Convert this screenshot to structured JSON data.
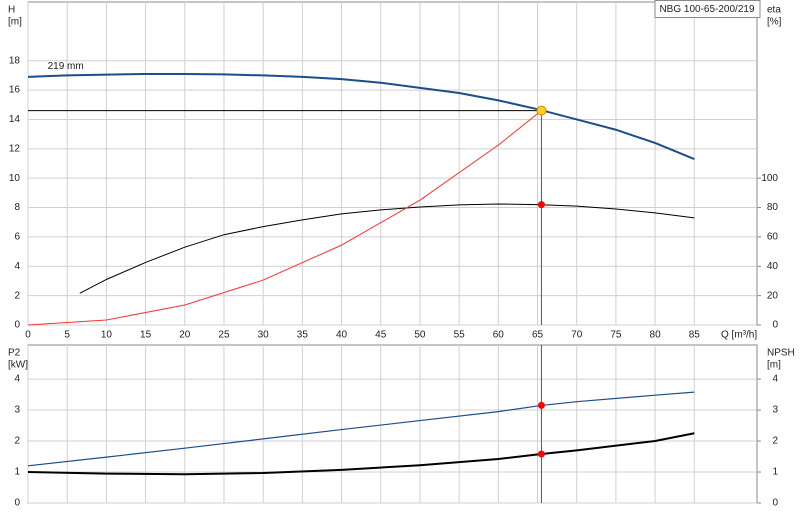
{
  "chart_data": [
    {
      "type": "line",
      "title": "NBG 100-65-200/219",
      "y_label": "H",
      "y_unit": "[m]",
      "y2_label": "eta",
      "y2_unit": "[%]",
      "x_label": "Q [m³/h]",
      "annotation": "219 mm",
      "annotation_x": 2.5,
      "annotation_y": 17.6,
      "xlim": [
        0,
        93
      ],
      "xticks": [
        0,
        5,
        10,
        15,
        20,
        25,
        30,
        35,
        40,
        45,
        50,
        55,
        60,
        65,
        70,
        75,
        80,
        85
      ],
      "xtick_labels": true,
      "ylim": [
        0,
        22
      ],
      "yticks": [
        0,
        2,
        4,
        6,
        8,
        10,
        12,
        14,
        16,
        18
      ],
      "y2lim": [
        0,
        220
      ],
      "y2ticks": [
        0,
        20,
        40,
        60,
        80,
        100
      ],
      "grid": true,
      "series": [
        {
          "color": "#1a4f8b",
          "width": 2,
          "axis": "y",
          "x": [
            0,
            5,
            10,
            15,
            20,
            25,
            30,
            35,
            40,
            45,
            50,
            55,
            60,
            65,
            70,
            75,
            80,
            85
          ],
          "values": [
            16.9,
            17.0,
            17.05,
            17.1,
            17.1,
            17.07,
            17.0,
            16.9,
            16.75,
            16.5,
            16.15,
            15.8,
            15.3,
            14.7,
            14.0,
            13.3,
            12.4,
            11.3
          ]
        },
        {
          "color": "#000000",
          "width": 1,
          "axis": "y2",
          "x": [
            6.6,
            10,
            15,
            20,
            25,
            30,
            35,
            40,
            45,
            50,
            55,
            60,
            65,
            70,
            75,
            80,
            85
          ],
          "values": [
            21.6,
            31,
            42.6,
            53,
            61.5,
            67,
            71.6,
            75.7,
            78.4,
            80.4,
            81.8,
            82.4,
            82,
            81,
            79,
            76.4,
            73
          ]
        },
        {
          "color": "#ff3030",
          "width": 1,
          "axis": "y",
          "x": [
            0,
            10,
            20,
            30,
            40,
            50,
            60,
            65.5
          ],
          "values": [
            0,
            0.34,
            1.36,
            3.06,
            5.44,
            8.5,
            12.25,
            14.6
          ]
        }
      ],
      "markers": [
        {
          "x": 65.5,
          "value": 14.6,
          "axis": "y",
          "color": "#ffd21f",
          "guide": true
        },
        {
          "x": 65.5,
          "value": 82,
          "axis": "y2",
          "color": "#ff0000",
          "guide": false
        }
      ]
    },
    {
      "type": "line",
      "y_label": "P2",
      "y_unit": "[kW]",
      "y2_label": "NPSH",
      "y2_unit": "[m]",
      "xlim": [
        0,
        93
      ],
      "xticks": [
        0,
        5,
        10,
        15,
        20,
        25,
        30,
        35,
        40,
        45,
        50,
        55,
        60,
        65,
        70,
        75,
        80,
        85
      ],
      "xtick_labels": false,
      "ylim": [
        0,
        5.1
      ],
      "yticks": [
        0,
        1,
        2,
        3,
        4
      ],
      "y2lim": [
        0,
        5.1
      ],
      "y2ticks": [
        0,
        1,
        2,
        3,
        4
      ],
      "grid": true,
      "series": [
        {
          "color": "#1a4f8b",
          "width": 1.2,
          "axis": "y",
          "x": [
            0,
            10,
            20,
            30,
            40,
            50,
            60,
            65.5,
            70,
            80,
            85
          ],
          "values": [
            1.2,
            1.48,
            1.77,
            2.07,
            2.37,
            2.66,
            2.95,
            3.15,
            3.27,
            3.48,
            3.58
          ]
        },
        {
          "color": "#000000",
          "width": 2,
          "axis": "y2",
          "x": [
            0,
            10,
            20,
            30,
            40,
            50,
            60,
            65.5,
            70,
            80,
            85
          ],
          "values": [
            1.0,
            0.95,
            0.93,
            0.97,
            1.07,
            1.22,
            1.42,
            1.58,
            1.7,
            2.0,
            2.25
          ]
        }
      ],
      "markers": [
        {
          "x": 65.5,
          "value": 3.15,
          "axis": "y",
          "color": "#ff0000",
          "guide": false
        },
        {
          "x": 65.5,
          "value": 1.58,
          "axis": "y2",
          "color": "#ff0000",
          "guide": false
        }
      ]
    }
  ]
}
